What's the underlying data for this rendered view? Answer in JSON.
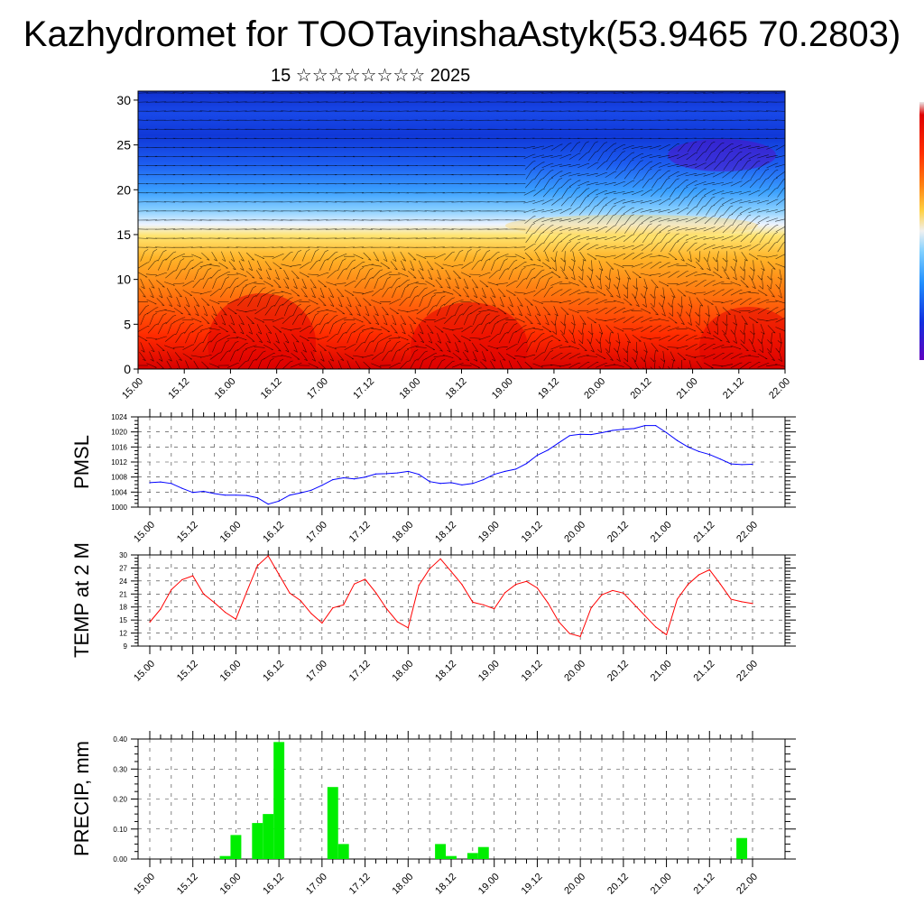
{
  "title": "Kazhydromet for TOOTayinshaAstyk(53.9465 70.2803)",
  "subtitle": "15 ☆☆☆☆☆☆☆☆ 2025",
  "colors": {
    "pmsl_line": "#0000ff",
    "temp_line": "#ff0000",
    "precip_bar": "#00ee00",
    "axis": "#000000",
    "grid": "#000000"
  },
  "chart_data": [
    {
      "type": "heatmap",
      "description_visible": "vertical cross-section, warm near surface, cold aloft, wind barbs overlaid",
      "x_ticks": [
        "15.00",
        "15.12",
        "16.00",
        "16.12",
        "17.00",
        "17.12",
        "18.00",
        "18.12",
        "19.00",
        "19.12",
        "20.00",
        "20.12",
        "21.00",
        "21.12",
        "22.00"
      ],
      "y_ticks": [
        "0",
        "5",
        "10",
        "15",
        "20",
        "25",
        "30"
      ],
      "ylim": [
        0,
        31
      ],
      "colorscale": [
        "#7000c8",
        "#1020e0",
        "#2060ff",
        "#40a0ff",
        "#80d0ff",
        "#f0f0f0",
        "#ffe060",
        "#ffb020",
        "#ff7010",
        "#ff3000",
        "#e00000"
      ]
    },
    {
      "type": "line",
      "ylabel": "PMSL",
      "x_ticks": [
        "15.00",
        "15.12",
        "16.00",
        "16.12",
        "17.00",
        "17.12",
        "18.00",
        "18.12",
        "19.00",
        "19.12",
        "20.00",
        "20.12",
        "21.00",
        "21.12",
        "22.00"
      ],
      "y_ticks": [
        "1000",
        "1004",
        "1008",
        "1012",
        "1016",
        "1020",
        "1024"
      ],
      "ylim": [
        1000,
        1024
      ],
      "grid": true,
      "x": [
        0,
        3,
        6,
        9,
        12,
        15,
        18,
        21,
        24,
        27,
        30,
        33,
        36,
        39,
        42,
        45,
        48,
        51,
        54,
        57,
        60,
        63,
        66,
        69,
        72,
        75,
        78,
        81,
        84,
        87,
        90,
        93,
        96,
        99,
        102,
        105,
        108,
        111,
        114,
        117,
        120,
        123,
        126,
        129,
        132,
        135,
        138,
        141,
        144,
        147,
        150,
        153,
        156,
        159,
        162,
        165,
        168
      ],
      "values": [
        1006.5,
        1006.7,
        1006.3,
        1005,
        1003.9,
        1004.2,
        1003.6,
        1003.2,
        1003.2,
        1003.1,
        1002.5,
        1000.8,
        1001.6,
        1003.2,
        1003.8,
        1004.5,
        1005.8,
        1007.3,
        1007.8,
        1007.5,
        1008,
        1008.8,
        1008.9,
        1009.1,
        1009.5,
        1008.7,
        1006.8,
        1006.3,
        1006.5,
        1005.9,
        1006.3,
        1007.3,
        1008.7,
        1009.5,
        1010.1,
        1011.6,
        1013.8,
        1015.2,
        1017.1,
        1019,
        1019.4,
        1019.3,
        1019.8,
        1020.4,
        1020.7,
        1020.9,
        1021.7,
        1021.7,
        1019.8,
        1017.7,
        1016,
        1014.8,
        1014,
        1012.8,
        1011.5,
        1011.3,
        1011.4
      ]
    },
    {
      "type": "line",
      "ylabel": "TEMP at 2 M",
      "x_ticks": [
        "15.00",
        "15.12",
        "16.00",
        "16.12",
        "17.00",
        "17.12",
        "18.00",
        "18.12",
        "19.00",
        "19.12",
        "20.00",
        "20.12",
        "21.00",
        "21.12",
        "22.00"
      ],
      "y_ticks": [
        "9",
        "12",
        "15",
        "18",
        "21",
        "24",
        "27",
        "30"
      ],
      "ylim": [
        9,
        30
      ],
      "grid": true,
      "x": [
        0,
        3,
        6,
        9,
        12,
        15,
        18,
        21,
        24,
        27,
        30,
        33,
        36,
        39,
        42,
        45,
        48,
        51,
        54,
        57,
        60,
        63,
        66,
        69,
        72,
        75,
        78,
        81,
        84,
        87,
        90,
        93,
        96,
        99,
        102,
        105,
        108,
        111,
        114,
        117,
        120,
        123,
        126,
        129,
        132,
        135,
        138,
        141,
        144,
        147,
        150,
        153,
        156,
        159,
        162,
        165,
        168
      ],
      "values": [
        14.5,
        17.5,
        22,
        24.3,
        25.2,
        21,
        19,
        16.8,
        15.2,
        21.5,
        27.5,
        29.8,
        25.5,
        21.2,
        19.5,
        16.5,
        14.3,
        17.8,
        18.5,
        23.3,
        24.4,
        21.3,
        17.6,
        14.6,
        13.2,
        23,
        26.8,
        29.1,
        26.2,
        23.2,
        19.1,
        18.5,
        17.6,
        21.3,
        23.2,
        23.9,
        22.4,
        18.9,
        14.6,
        11.9,
        11.2,
        17.8,
        20.8,
        21.8,
        21.2,
        18.6,
        16,
        13.4,
        11.6,
        19.8,
        23.2,
        25.4,
        26.6,
        23.3,
        19.8,
        19.2,
        18.8
      ]
    },
    {
      "type": "bar",
      "ylabel": "PRECIP, mm",
      "x_ticks": [
        "15.00",
        "15.12",
        "16.00",
        "16.12",
        "17.00",
        "17.12",
        "18.00",
        "18.12",
        "19.00",
        "19.12",
        "20.00",
        "20.12",
        "21.00",
        "21.12",
        "22.00"
      ],
      "y_ticks": [
        "0.00",
        "0.10",
        "0.20",
        "0.30",
        "0.40"
      ],
      "ylim": [
        0,
        0.4
      ],
      "grid": true,
      "bar_width_h": 3,
      "x": [
        21,
        24,
        30,
        33,
        36,
        51,
        54,
        81,
        84,
        90,
        93,
        165
      ],
      "values": [
        0.01,
        0.08,
        0.12,
        0.15,
        0.39,
        0.24,
        0.05,
        0.05,
        0.01,
        0.02,
        0.04,
        0.07
      ]
    }
  ]
}
